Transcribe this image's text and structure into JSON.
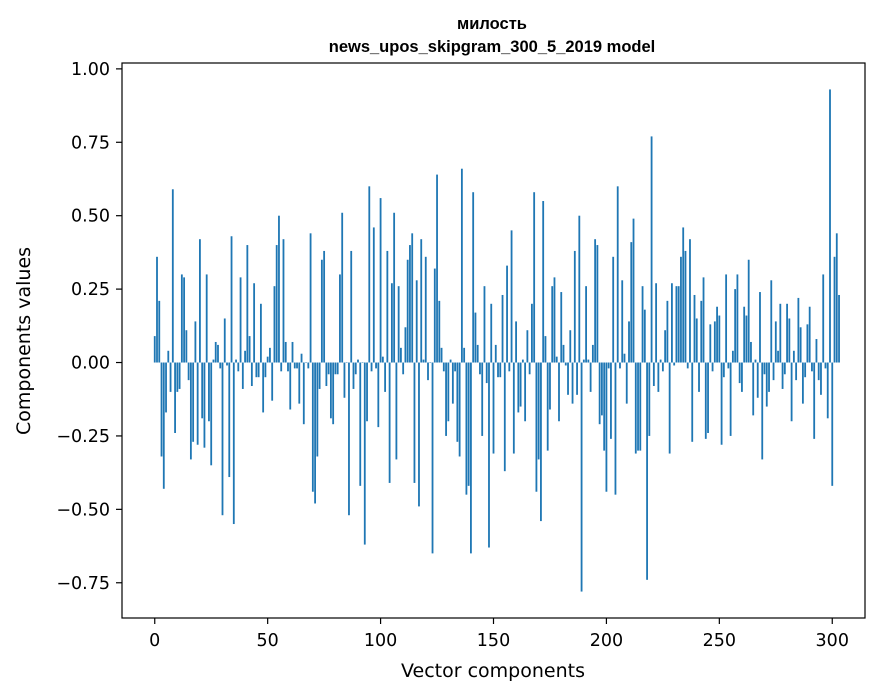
{
  "chart_data": {
    "type": "bar",
    "title_line1": "милость",
    "title_line2": "news_upos_skipgram_300_5_2019 model",
    "xlabel": "Vector components",
    "ylabel": "Components values",
    "xlim": [
      -14.5,
      314.5
    ],
    "ylim": [
      -0.87,
      1.02
    ],
    "xticks": [
      0,
      50,
      100,
      150,
      200,
      250,
      300
    ],
    "xtick_labels": [
      "0",
      "50",
      "100",
      "150",
      "200",
      "250",
      "300"
    ],
    "yticks": [
      -0.75,
      -0.5,
      -0.25,
      0.0,
      0.25,
      0.5,
      0.75,
      1.0
    ],
    "ytick_labels": [
      "−0.75",
      "−0.50",
      "−0.25",
      "0.00",
      "0.25",
      "0.50",
      "0.75",
      "1.00"
    ],
    "bar_color": "#1f77b4",
    "values": [
      0.09,
      0.36,
      0.21,
      -0.32,
      -0.43,
      -0.17,
      0.04,
      -0.1,
      0.59,
      -0.24,
      -0.1,
      -0.09,
      0.3,
      0.29,
      0.11,
      -0.06,
      -0.33,
      -0.27,
      0.14,
      -0.28,
      0.42,
      -0.19,
      -0.29,
      0.3,
      -0.2,
      -0.35,
      0.01,
      0.07,
      0.06,
      -0.02,
      -0.52,
      0.15,
      -0.01,
      -0.39,
      0.43,
      -0.55,
      0.01,
      -0.03,
      0.29,
      -0.09,
      0.04,
      0.4,
      0.09,
      -0.08,
      0.27,
      -0.05,
      -0.05,
      0.2,
      -0.17,
      -0.05,
      0.02,
      0.05,
      -0.13,
      0.26,
      0.4,
      0.5,
      -0.03,
      0.42,
      0.07,
      -0.03,
      -0.16,
      0.07,
      -0.02,
      -0.02,
      -0.14,
      0.03,
      -0.21,
      0.0,
      -0.02,
      0.44,
      -0.44,
      -0.48,
      -0.32,
      -0.09,
      0.35,
      0.38,
      -0.08,
      -0.04,
      -0.19,
      -0.21,
      -0.04,
      -0.04,
      0.3,
      0.51,
      -0.12,
      0.0,
      -0.52,
      0.38,
      -0.09,
      -0.04,
      0.01,
      -0.42,
      0.0,
      -0.62,
      -0.2,
      0.6,
      -0.03,
      0.46,
      -0.02,
      -0.22,
      0.56,
      0.02,
      -0.1,
      0.38,
      -0.41,
      0.27,
      0.51,
      -0.33,
      0.26,
      0.05,
      -0.04,
      0.12,
      0.35,
      0.4,
      0.44,
      -0.41,
      0.28,
      -0.49,
      0.42,
      0.01,
      0.36,
      -0.06,
      0.0,
      -0.65,
      0.32,
      0.64,
      0.21,
      0.05,
      -0.03,
      -0.25,
      -0.2,
      0.01,
      -0.14,
      -0.03,
      -0.27,
      -0.32,
      0.66,
      0.05,
      -0.45,
      -0.42,
      -0.65,
      0.58,
      0.17,
      0.06,
      -0.04,
      -0.25,
      0.26,
      -0.07,
      -0.63,
      0.2,
      -0.31,
      0.06,
      -0.05,
      -0.05,
      0.23,
      -0.37,
      0.33,
      -0.03,
      0.45,
      -0.31,
      0.14,
      -0.17,
      -0.15,
      0.01,
      -0.2,
      0.11,
      -0.04,
      0.2,
      0.58,
      -0.44,
      -0.33,
      -0.54,
      0.55,
      0.09,
      -0.3,
      -0.16,
      0.26,
      0.29,
      0.02,
      -0.2,
      0.24,
      0.06,
      -0.01,
      -0.11,
      0.11,
      -0.14,
      0.38,
      -0.11,
      0.5,
      -0.78,
      0.01,
      0.26,
      0.01,
      -0.1,
      0.06,
      0.42,
      0.4,
      -0.21,
      -0.18,
      -0.3,
      -0.44,
      -0.02,
      -0.26,
      0.36,
      -0.45,
      0.6,
      -0.02,
      0.28,
      0.03,
      -0.14,
      0.14,
      0.41,
      0.49,
      -0.31,
      -0.3,
      -0.3,
      0.26,
      0.18,
      -0.74,
      -0.25,
      0.77,
      -0.08,
      0.27,
      -0.1,
      0.01,
      -0.03,
      0.11,
      0.21,
      -0.31,
      0.27,
      -0.01,
      0.26,
      0.26,
      0.36,
      0.46,
      0.38,
      -0.02,
      0.42,
      -0.27,
      0.23,
      0.15,
      -0.1,
      0.21,
      0.29,
      -0.26,
      -0.24,
      0.13,
      -0.03,
      0.14,
      0.19,
      0.16,
      -0.28,
      -0.05,
      0.3,
      -0.02,
      -0.25,
      0.04,
      0.25,
      0.3,
      -0.07,
      -0.1,
      0.19,
      0.16,
      0.35,
      0.07,
      -0.18,
      0.01,
      -0.12,
      0.24,
      -0.33,
      -0.04,
      -0.15,
      -0.1,
      0.28,
      -0.06,
      0.14,
      0.04,
      0.2,
      -0.09,
      -0.04,
      0.2,
      0.15,
      -0.2,
      0.04,
      -0.06,
      0.22,
      0.12,
      -0.14,
      -0.05,
      0.13,
      0.19,
      -0.03,
      -0.26,
      0.08,
      -0.06,
      -0.11,
      0.3,
      -0.02,
      -0.19,
      0.93,
      -0.42,
      0.36,
      0.44,
      0.23
    ]
  }
}
